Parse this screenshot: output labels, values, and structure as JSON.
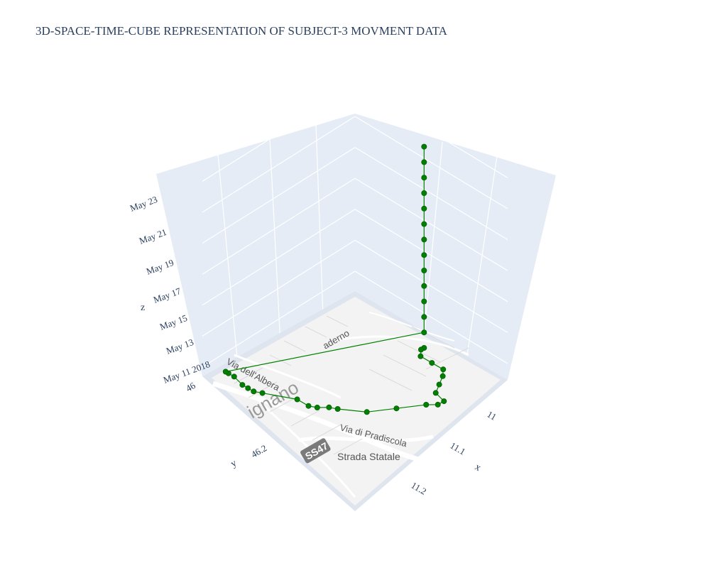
{
  "chart_title": "3D-SPACE-TIME-CUBE REPRESENTATION OF SUBJECT-3 MOVMENT DATA",
  "chart_data": {
    "type": "scatter3d",
    "title": "3D-SPACE-TIME-CUBE REPRESENTATION OF SUBJECT-3 MOVMENT DATA",
    "xlabel": "x",
    "ylabel": "y",
    "zlabel": "z",
    "x_ticks": [
      "11",
      "11.1",
      "11.2"
    ],
    "y_ticks": [
      "46",
      "46.2"
    ],
    "z_ticks": [
      "May 11 2018",
      "May 13",
      "May 15",
      "May 17",
      "May 19",
      "May 21",
      "May 23"
    ],
    "marker_color": "#008000",
    "mode": "lines+markers",
    "series": [
      {
        "points": [
          {
            "x": 11.12,
            "y": 46.03,
            "z": "2018-05-11"
          },
          {
            "x": 11.12,
            "y": 46.04,
            "z": "2018-05-11"
          },
          {
            "x": 11.13,
            "y": 46.06,
            "z": "2018-05-11"
          },
          {
            "x": 11.15,
            "y": 46.06,
            "z": "2018-05-11"
          },
          {
            "x": 11.17,
            "y": 46.06,
            "z": "2018-05-11"
          },
          {
            "x": 11.18,
            "y": 46.08,
            "z": "2018-05-11"
          },
          {
            "x": 11.19,
            "y": 46.11,
            "z": "2018-05-11"
          },
          {
            "x": 11.2,
            "y": 46.14,
            "z": "2018-05-11"
          },
          {
            "x": 11.22,
            "y": 46.15,
            "z": "2018-05-11"
          },
          {
            "x": 11.22,
            "y": 46.17,
            "z": "2018-05-11"
          },
          {
            "x": 11.21,
            "y": 46.19,
            "z": "2018-05-11"
          },
          {
            "x": 11.19,
            "y": 46.25,
            "z": "2018-05-11"
          },
          {
            "x": 11.17,
            "y": 46.31,
            "z": "2018-05-11"
          },
          {
            "x": 11.14,
            "y": 46.35,
            "z": "2018-05-11"
          },
          {
            "x": 11.13,
            "y": 46.36,
            "z": "2018-05-11"
          },
          {
            "x": 11.12,
            "y": 46.38,
            "z": "2018-05-11"
          },
          {
            "x": 11.11,
            "y": 46.39,
            "z": "2018-05-11"
          },
          {
            "x": 11.09,
            "y": 46.39,
            "z": "2018-05-11"
          },
          {
            "x": 11.05,
            "y": 46.43,
            "z": "2018-05-11"
          },
          {
            "x": 11.04,
            "y": 46.44,
            "z": "2018-05-11"
          },
          {
            "x": 11.03,
            "y": 46.44,
            "z": "2018-05-11"
          },
          {
            "x": 11.02,
            "y": 46.44,
            "z": "2018-05-11"
          },
          {
            "x": 11.0,
            "y": 46.43,
            "z": "2018-05-11"
          },
          {
            "x": 10.99,
            "y": 46.43,
            "z": "2018-05-11"
          },
          {
            "x": 10.985,
            "y": 46.43,
            "z": "2018-05-11"
          },
          {
            "x": 11.12,
            "y": 46.03,
            "z": "2018-05-12"
          },
          {
            "x": 11.12,
            "y": 46.03,
            "z": "2018-05-13"
          },
          {
            "x": 11.12,
            "y": 46.03,
            "z": "2018-05-14"
          },
          {
            "x": 11.12,
            "y": 46.03,
            "z": "2018-05-15"
          },
          {
            "x": 11.12,
            "y": 46.03,
            "z": "2018-05-16"
          },
          {
            "x": 11.12,
            "y": 46.03,
            "z": "2018-05-17"
          },
          {
            "x": 11.12,
            "y": 46.03,
            "z": "2018-05-18"
          },
          {
            "x": 11.12,
            "y": 46.03,
            "z": "2018-05-19"
          },
          {
            "x": 11.12,
            "y": 46.03,
            "z": "2018-05-20"
          },
          {
            "x": 11.12,
            "y": 46.03,
            "z": "2018-05-21"
          },
          {
            "x": 11.12,
            "y": 46.03,
            "z": "2018-05-22"
          },
          {
            "x": 11.12,
            "y": 46.03,
            "z": "2018-05-23"
          },
          {
            "x": 11.12,
            "y": 46.03,
            "z": "2018-05-24"
          }
        ]
      }
    ],
    "map_labels": [
      "Via dell'Albera",
      "Via di Pradiscola",
      "Strada Statale",
      "SS47",
      "ignano",
      "aderno"
    ]
  }
}
